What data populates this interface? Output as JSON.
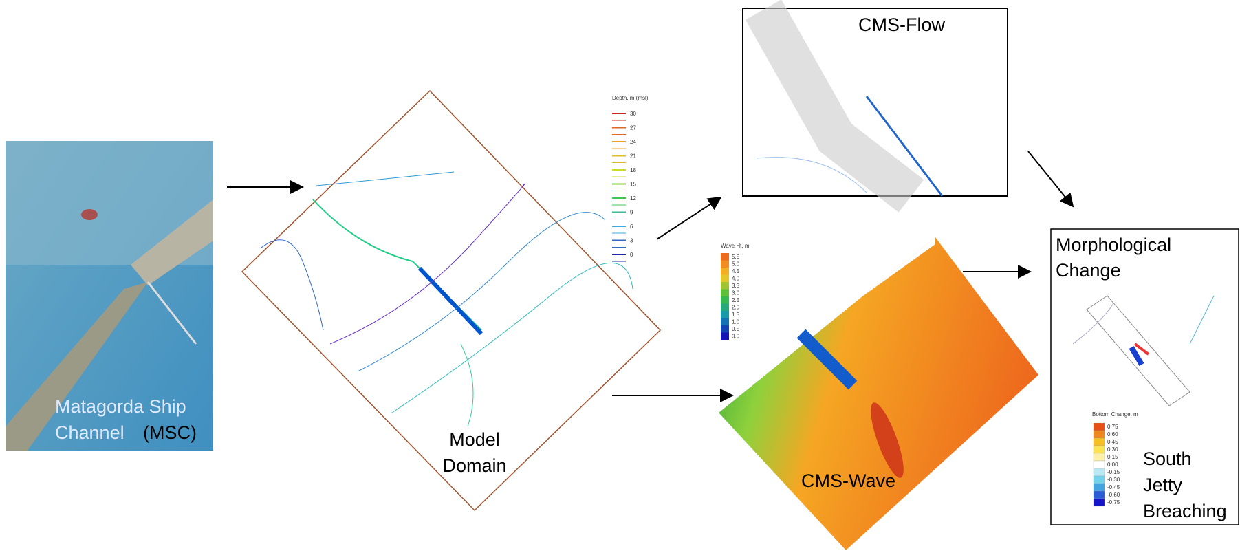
{
  "satellite": {
    "label_line1": "Matagorda Ship",
    "label_line2": "Channel",
    "label_tag": "(MSC)"
  },
  "model_domain": {
    "label_line1": "Model",
    "label_line2": "Domain",
    "legend_title": "Depth, m (msl)",
    "legend": [
      "30",
      "27",
      "24",
      "21",
      "18",
      "15",
      "12",
      "9",
      "6",
      "3",
      "0"
    ]
  },
  "cms_flow": {
    "label": "CMS-Flow"
  },
  "cms_wave": {
    "label": "CMS-Wave",
    "legend_title": "Wave Ht, m",
    "legend": [
      "5.5",
      "5.0",
      "4.5",
      "4.0",
      "3.5",
      "3.0",
      "2.5",
      "2.0",
      "1.5",
      "1.0",
      "0.5",
      "0.0"
    ]
  },
  "morphology": {
    "label_line1": "Morphological",
    "label_line2": "Change",
    "legend_title": "Bottom Change, m",
    "legend": [
      "0.75",
      "0.60",
      "0.45",
      "0.30",
      "0.15",
      "0.00",
      "-0.15",
      "-0.30",
      "-0.45",
      "-0.60",
      "-0.75"
    ],
    "note_line1": "South",
    "note_line2": "Jetty",
    "note_line3": "Breaching"
  }
}
